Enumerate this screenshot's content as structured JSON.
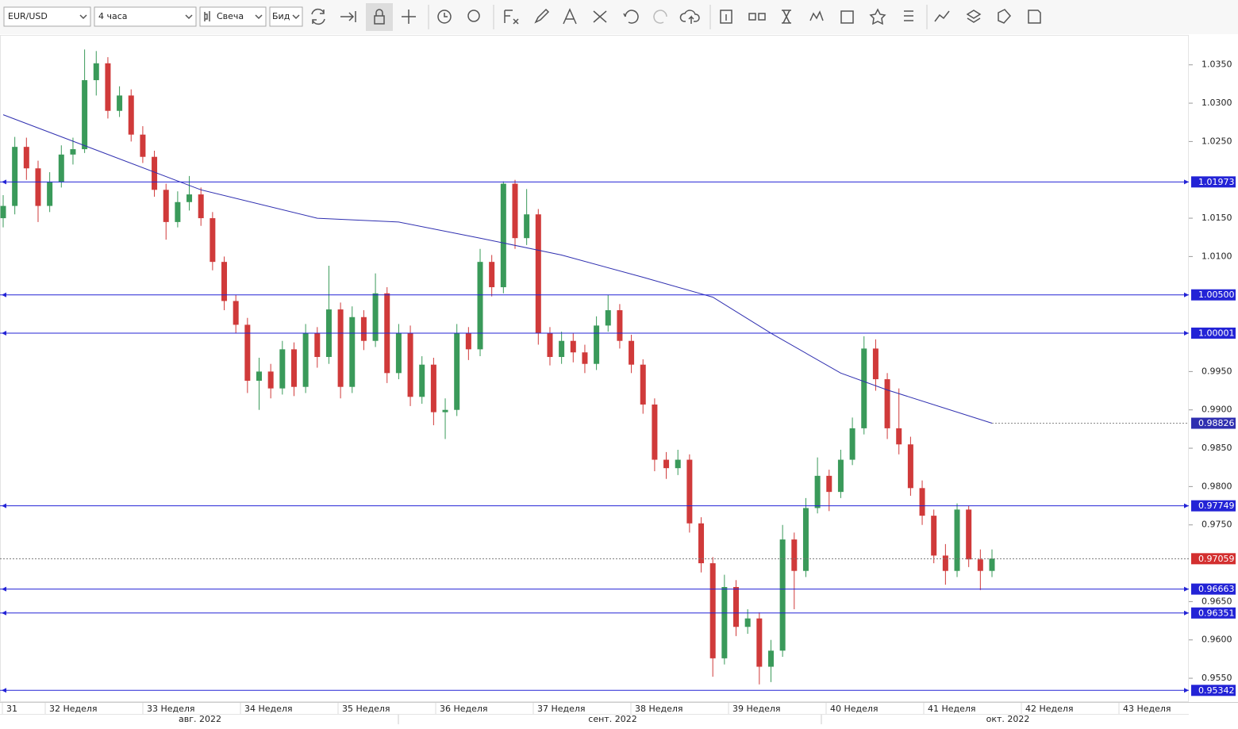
{
  "toolbar": {
    "symbol": "EUR/USD",
    "timeframe": "4 часа",
    "chart_style": "Свеча",
    "price_type": "Бид"
  },
  "chart_data": {
    "type": "candlestick",
    "up_color": "#3a9a5a",
    "down_color": "#d03a3a",
    "ylim": [
      0.9519,
      1.0388
    ],
    "yticks": [
      {
        "value": 1.035,
        "label": "1.0350"
      },
      {
        "value": 1.03,
        "label": "1.0300"
      },
      {
        "value": 1.025,
        "label": "1.0250"
      },
      {
        "value": 1.015,
        "label": "1.0150"
      },
      {
        "value": 1.01,
        "label": "1.0100"
      },
      {
        "value": 0.995,
        "label": "0.9950"
      },
      {
        "value": 0.99,
        "label": "0.9900"
      },
      {
        "value": 0.985,
        "label": "0.9850"
      },
      {
        "value": 0.98,
        "label": "0.9800"
      },
      {
        "value": 0.975,
        "label": "0.9750"
      },
      {
        "value": 0.965,
        "label": "0.9650"
      },
      {
        "value": 0.96,
        "label": "0.9600"
      },
      {
        "value": 0.955,
        "label": "0.9550"
      }
    ],
    "grid": false,
    "week_labels": [
      "31",
      "32 Неделя",
      "33 Неделя",
      "34 Неделя",
      "35 Неделя",
      "36 Неделя",
      "37 Неделя",
      "38 Неделя",
      "39 Неделя",
      "40 Неделя",
      "41 Неделя",
      "42 Неделя",
      "43 Неделя"
    ],
    "month_labels": [
      "авг. 2022",
      "сент. 2022",
      "окт. 2022"
    ],
    "candles": [
      [
        1.015,
        1.018,
        1.0138,
        1.0166
      ],
      [
        1.0166,
        1.0256,
        1.0155,
        1.0243
      ],
      [
        1.0243,
        1.0255,
        1.02,
        1.0215
      ],
      [
        1.0215,
        1.0225,
        1.0145,
        1.0166
      ],
      [
        1.0166,
        1.021,
        1.0158,
        1.0197
      ],
      [
        1.0197,
        1.0245,
        1.019,
        1.0233
      ],
      [
        1.0233,
        1.0255,
        1.022,
        1.024
      ],
      [
        1.024,
        1.037,
        1.0235,
        1.033
      ],
      [
        1.033,
        1.0368,
        1.031,
        1.0352
      ],
      [
        1.0352,
        1.036,
        1.028,
        1.029
      ],
      [
        1.029,
        1.0322,
        1.0282,
        1.031
      ],
      [
        1.031,
        1.0318,
        1.025,
        1.0259
      ],
      [
        1.0259,
        1.027,
        1.0222,
        1.023
      ],
      [
        1.023,
        1.0238,
        1.0178,
        1.0187
      ],
      [
        1.0187,
        1.0195,
        1.0122,
        1.0145
      ],
      [
        1.0145,
        1.0185,
        1.0138,
        1.0171
      ],
      [
        1.0171,
        1.0205,
        1.016,
        1.0181
      ],
      [
        1.0181,
        1.019,
        1.014,
        1.015
      ],
      [
        1.015,
        1.0158,
        1.0082,
        1.0093
      ],
      [
        1.0093,
        1.01,
        1.003,
        1.0042
      ],
      [
        1.0042,
        1.005,
        1.0,
        1.0011
      ],
      [
        1.0011,
        1.002,
        0.9922,
        0.9938
      ],
      [
        0.9938,
        0.9968,
        0.99,
        0.995
      ],
      [
        0.995,
        0.996,
        0.9915,
        0.9928
      ],
      [
        0.9928,
        0.999,
        0.992,
        0.9979
      ],
      [
        0.9979,
        0.9988,
        0.9918,
        0.993
      ],
      [
        0.993,
        1.0012,
        0.9922,
        1.0
      ],
      [
        1.0,
        1.0008,
        0.9955,
        0.9969
      ],
      [
        0.9969,
        1.0088,
        0.996,
        1.0031
      ],
      [
        1.0031,
        1.004,
        0.9915,
        0.993
      ],
      [
        0.993,
        1.0035,
        0.9922,
        1.0021
      ],
      [
        1.0021,
        1.003,
        0.9978,
        0.999
      ],
      [
        0.999,
        1.0078,
        0.9982,
        1.0052
      ],
      [
        1.0052,
        1.006,
        0.9935,
        0.9948
      ],
      [
        0.9948,
        1.0012,
        0.994,
        1.0
      ],
      [
        1.0,
        1.001,
        0.9905,
        0.9917
      ],
      [
        0.9917,
        0.997,
        0.9908,
        0.9959
      ],
      [
        0.9959,
        0.9968,
        0.988,
        0.9897
      ],
      [
        0.9897,
        0.9915,
        0.9862,
        0.99
      ],
      [
        0.99,
        1.0012,
        0.9892,
        1.0
      ],
      [
        1.0,
        1.0008,
        0.9965,
        0.9979
      ],
      [
        0.9979,
        1.011,
        0.997,
        1.0093
      ],
      [
        1.0093,
        1.0102,
        1.0048,
        1.006
      ],
      [
        1.006,
        1.0198,
        1.0052,
        1.0195
      ],
      [
        1.0195,
        1.02,
        1.011,
        1.0124
      ],
      [
        1.0124,
        1.0188,
        1.0115,
        1.0155
      ],
      [
        1.0155,
        1.0162,
        0.9985,
        1.0
      ],
      [
        1.0,
        1.0008,
        0.9958,
        0.9969
      ],
      [
        0.9969,
        1.0002,
        0.996,
        0.999
      ],
      [
        0.999,
        1.0,
        0.9962,
        0.9975
      ],
      [
        0.9975,
        0.9985,
        0.9948,
        0.996
      ],
      [
        0.996,
        1.0022,
        0.9952,
        1.001
      ],
      [
        1.001,
        1.005,
        1.0002,
        1.003
      ],
      [
        1.003,
        1.0038,
        0.998,
        0.999
      ],
      [
        0.999,
        0.9998,
        0.9948,
        0.9959
      ],
      [
        0.9959,
        0.9966,
        0.9895,
        0.9907
      ],
      [
        0.9907,
        0.9915,
        0.982,
        0.9835
      ],
      [
        0.9835,
        0.9845,
        0.981,
        0.9824
      ],
      [
        0.9824,
        0.9848,
        0.9815,
        0.9835
      ],
      [
        0.9835,
        0.9842,
        0.974,
        0.9752
      ],
      [
        0.9752,
        0.976,
        0.9688,
        0.97
      ],
      [
        0.97,
        0.9708,
        0.9552,
        0.9576
      ],
      [
        0.9576,
        0.9685,
        0.9568,
        0.9669
      ],
      [
        0.9669,
        0.9678,
        0.9605,
        0.9617
      ],
      [
        0.9617,
        0.964,
        0.9608,
        0.9628
      ],
      [
        0.9628,
        0.9636,
        0.9542,
        0.9565
      ],
      [
        0.9565,
        0.96,
        0.9545,
        0.9586
      ],
      [
        0.9586,
        0.975,
        0.9578,
        0.9731
      ],
      [
        0.9731,
        0.974,
        0.964,
        0.969
      ],
      [
        0.969,
        0.9785,
        0.9682,
        0.9772
      ],
      [
        0.9772,
        0.9838,
        0.9765,
        0.9814
      ],
      [
        0.9814,
        0.9822,
        0.9768,
        0.9793
      ],
      [
        0.9793,
        0.9848,
        0.9785,
        0.9835
      ],
      [
        0.9835,
        0.989,
        0.9828,
        0.9876
      ],
      [
        0.9876,
        0.9996,
        0.9868,
        0.998
      ],
      [
        0.998,
        0.9992,
        0.9925,
        0.994
      ],
      [
        0.994,
        0.9948,
        0.9862,
        0.9876
      ],
      [
        0.9876,
        0.9928,
        0.9842,
        0.9855
      ],
      [
        0.9855,
        0.9865,
        0.9788,
        0.9798
      ],
      [
        0.9798,
        0.9808,
        0.975,
        0.9762
      ],
      [
        0.9762,
        0.977,
        0.97,
        0.971
      ],
      [
        0.971,
        0.9725,
        0.9672,
        0.969
      ],
      [
        0.969,
        0.9778,
        0.9682,
        0.977
      ],
      [
        0.977,
        0.9775,
        0.9695,
        0.9705
      ],
      [
        0.9705,
        0.9718,
        0.9665,
        0.969
      ],
      [
        0.969,
        0.9718,
        0.9682,
        0.9706
      ]
    ],
    "moving_average": {
      "color": "#2f2fb0",
      "x": [
        0,
        17,
        27,
        34,
        41,
        48,
        55,
        61,
        66,
        72,
        76,
        85
      ],
      "values": [
        1.0285,
        1.0187,
        1.015,
        1.0145,
        1.0124,
        1.0102,
        1.0073,
        1.0047,
        1.0,
        0.9948,
        0.9926,
        0.98826
      ],
      "last": {
        "value": 0.98826,
        "label": "0.98826"
      }
    },
    "levels_color": "#2323d6",
    "levels": [
      {
        "value": 1.01973,
        "label": "1.01973"
      },
      {
        "value": 1.005,
        "label": "1.00500"
      },
      {
        "value": 1.00001,
        "label": "1.00001"
      },
      {
        "value": 0.97749,
        "label": "0.97749"
      },
      {
        "value": 0.96663,
        "label": "0.96663"
      },
      {
        "value": 0.96351,
        "label": "0.96351"
      },
      {
        "value": 0.95342,
        "label": "0.95342"
      }
    ],
    "current_price": {
      "value": 0.97059,
      "label": "0.97059",
      "color": "#d32f2f"
    }
  }
}
